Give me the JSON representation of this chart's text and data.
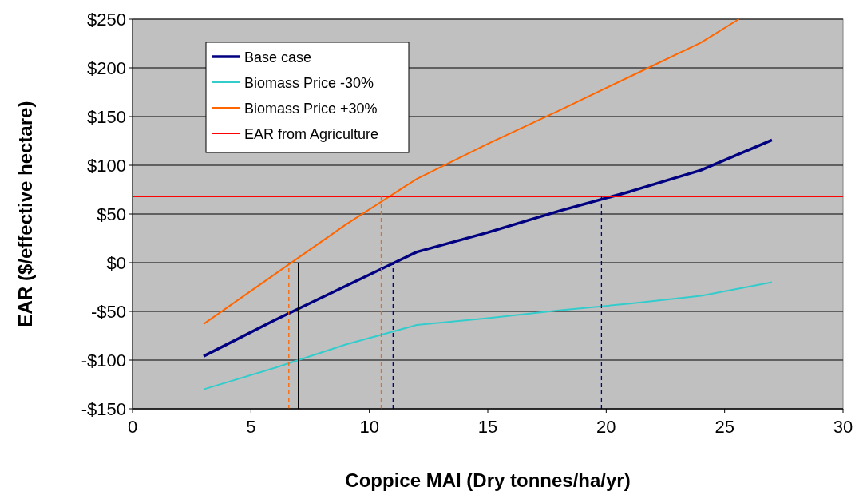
{
  "chart_data": {
    "type": "line",
    "xlabel": "Coppice MAI (Dry tonnes/ha/yr)",
    "ylabel": "EAR ($/effective hectare)",
    "xlim": [
      0,
      30
    ],
    "xticks": [
      0,
      5,
      10,
      15,
      20,
      25,
      30
    ],
    "ylim": [
      -150,
      250
    ],
    "yticks": [
      {
        "value": -150,
        "label": "-$150"
      },
      {
        "value": -100,
        "label": "-$100"
      },
      {
        "value": -50,
        "label": "-$50"
      },
      {
        "value": 0,
        "label": "$0"
      },
      {
        "value": 50,
        "label": "$50"
      },
      {
        "value": 100,
        "label": "$100"
      },
      {
        "value": 150,
        "label": "$150"
      },
      {
        "value": 200,
        "label": "$200"
      },
      {
        "value": 250,
        "label": "$250"
      }
    ],
    "grid": "y",
    "legend": "top left",
    "series": [
      {
        "name": "Base case",
        "color": "#000080",
        "x": [
          3,
          6,
          9,
          12,
          15,
          18,
          21,
          24,
          27
        ],
        "values": [
          -96,
          -59,
          -24,
          11,
          31,
          53,
          73,
          95,
          126
        ]
      },
      {
        "name": "Biomass Price -30%",
        "color": "#33cccc",
        "x": [
          3,
          6,
          9,
          12,
          15,
          18,
          21,
          24,
          27
        ],
        "values": [
          -130,
          -108,
          -84,
          -64,
          -57,
          -49,
          -42,
          -34,
          -20
        ]
      },
      {
        "name": "Biomass Price +30%",
        "color": "#ff6600",
        "x": [
          3,
          6,
          9,
          12,
          15,
          18,
          21,
          24,
          25.6
        ],
        "values": [
          -63,
          -12,
          39,
          86,
          122,
          156,
          191,
          226,
          250
        ]
      },
      {
        "name": "EAR from Agriculture",
        "color": "#ff0000",
        "x": [
          0,
          5,
          10,
          15,
          20,
          25,
          30
        ],
        "values": [
          68,
          68,
          68,
          68,
          68,
          68,
          68
        ]
      },
      {
        "color": "#ff6600",
        "line_style": "dashed",
        "x": [
          6.6,
          6.6
        ],
        "values": [
          -150,
          0
        ]
      },
      {
        "color": "#ff6600",
        "line_style": "dashed",
        "x": [
          10.5,
          10.5
        ],
        "values": [
          -150,
          68
        ]
      },
      {
        "color": "#000080",
        "line_style": "dashed",
        "x": [
          11,
          11
        ],
        "values": [
          -150,
          0
        ]
      },
      {
        "color": "#000080",
        "line_style": "dashed",
        "x": [
          19.8,
          19.8
        ],
        "values": [
          -150,
          68
        ]
      },
      {
        "color": "#000000",
        "line_style": "solid",
        "x": [
          7,
          7
        ],
        "values": [
          -150,
          0
        ]
      }
    ]
  }
}
